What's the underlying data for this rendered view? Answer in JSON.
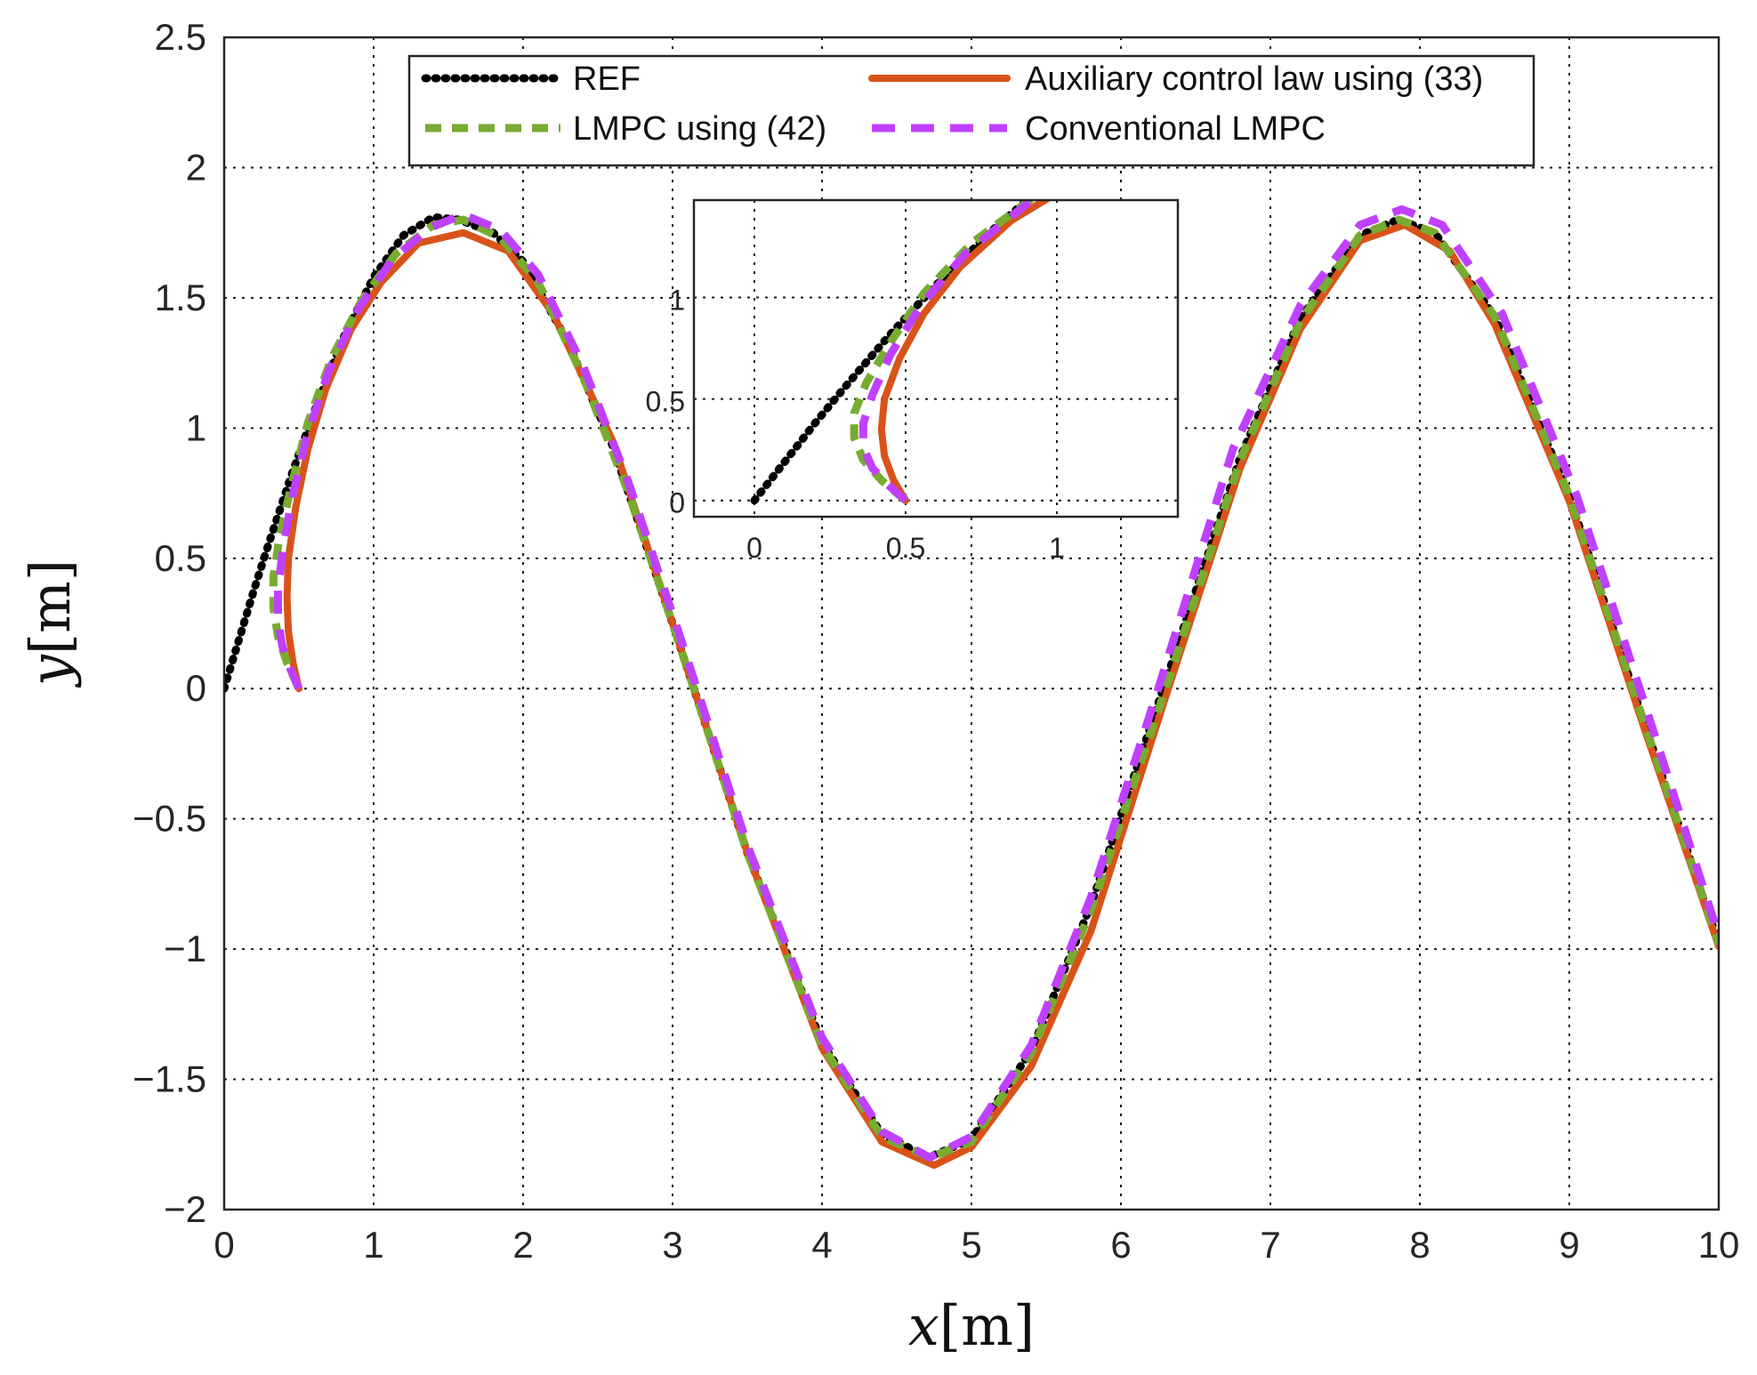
{
  "chart_data": {
    "type": "line",
    "xlabel_var": "x",
    "xlabel_unit": "[m]",
    "ylabel_var": "y",
    "ylabel_unit": "[m]",
    "xlim": [
      0,
      10
    ],
    "ylim": [
      -2,
      2.5
    ],
    "xticks": [
      "0",
      "1",
      "2",
      "3",
      "4",
      "5",
      "6",
      "7",
      "8",
      "9",
      "10"
    ],
    "yticks": [
      "2.5",
      "2",
      "1.5",
      "1",
      "0.5",
      "0",
      "−0.5",
      "−1",
      "−1.5",
      "−2"
    ],
    "grid": true,
    "legend_position": "top",
    "series": [
      {
        "name": "REF",
        "color": "#000000",
        "style": "dotted",
        "points": [
          [
            0,
            0
          ],
          [
            0.1,
            0.19
          ],
          [
            0.2,
            0.38
          ],
          [
            0.3,
            0.56
          ],
          [
            0.45,
            0.82
          ],
          [
            0.6,
            1.06
          ],
          [
            0.8,
            1.35
          ],
          [
            1.0,
            1.58
          ],
          [
            1.2,
            1.74
          ],
          [
            1.4,
            1.81
          ],
          [
            1.571,
            1.8
          ],
          [
            1.8,
            1.75
          ],
          [
            2.0,
            1.64
          ],
          [
            2.3,
            1.33
          ],
          [
            2.6,
            0.93
          ],
          [
            3.0,
            0.25
          ],
          [
            3.5,
            -0.63
          ],
          [
            4.0,
            -1.36
          ],
          [
            4.4,
            -1.71
          ],
          [
            4.712,
            -1.8
          ],
          [
            5.0,
            -1.73
          ],
          [
            5.4,
            -1.39
          ],
          [
            5.8,
            -0.83
          ],
          [
            6.283,
            0.0
          ],
          [
            6.8,
            0.89
          ],
          [
            7.2,
            1.42
          ],
          [
            7.6,
            1.74
          ],
          [
            7.854,
            1.8
          ],
          [
            8.1,
            1.75
          ],
          [
            8.5,
            1.43
          ],
          [
            9.0,
            0.74
          ],
          [
            9.5,
            -0.13
          ],
          [
            10.0,
            -0.98
          ]
        ]
      },
      {
        "name": "Auxiliary control law using (33)",
        "color": "#d95319",
        "style": "solid",
        "points": [
          [
            0.5,
            0
          ],
          [
            0.46,
            0.1
          ],
          [
            0.43,
            0.22
          ],
          [
            0.42,
            0.35
          ],
          [
            0.43,
            0.5
          ],
          [
            0.48,
            0.7
          ],
          [
            0.56,
            0.92
          ],
          [
            0.68,
            1.15
          ],
          [
            0.85,
            1.38
          ],
          [
            1.05,
            1.56
          ],
          [
            1.3,
            1.71
          ],
          [
            1.6,
            1.75
          ],
          [
            1.9,
            1.68
          ],
          [
            2.2,
            1.44
          ],
          [
            2.6,
            0.95
          ],
          [
            3.0,
            0.25
          ],
          [
            3.5,
            -0.63
          ],
          [
            4.0,
            -1.38
          ],
          [
            4.4,
            -1.74
          ],
          [
            4.75,
            -1.83
          ],
          [
            5.0,
            -1.76
          ],
          [
            5.4,
            -1.45
          ],
          [
            5.8,
            -0.93
          ],
          [
            6.3,
            -0.03
          ],
          [
            6.8,
            0.85
          ],
          [
            7.2,
            1.38
          ],
          [
            7.6,
            1.72
          ],
          [
            7.9,
            1.78
          ],
          [
            8.2,
            1.68
          ],
          [
            8.5,
            1.4
          ],
          [
            9.0,
            0.72
          ],
          [
            9.5,
            -0.15
          ],
          [
            10.0,
            -0.99
          ]
        ]
      },
      {
        "name": "LMPC using (42)",
        "color": "#77ac30",
        "style": "dashed",
        "points": [
          [
            0.5,
            0
          ],
          [
            0.42,
            0.1
          ],
          [
            0.36,
            0.2
          ],
          [
            0.33,
            0.31
          ],
          [
            0.33,
            0.43
          ],
          [
            0.37,
            0.58
          ],
          [
            0.45,
            0.78
          ],
          [
            0.56,
            1.02
          ],
          [
            0.72,
            1.27
          ],
          [
            0.92,
            1.49
          ],
          [
            1.15,
            1.67
          ],
          [
            1.4,
            1.78
          ],
          [
            1.6,
            1.8
          ],
          [
            1.85,
            1.73
          ],
          [
            2.1,
            1.56
          ],
          [
            2.4,
            1.2
          ],
          [
            2.7,
            0.76
          ],
          [
            3.0,
            0.25
          ],
          [
            3.5,
            -0.63
          ],
          [
            4.0,
            -1.37
          ],
          [
            4.4,
            -1.72
          ],
          [
            4.72,
            -1.8
          ],
          [
            5.0,
            -1.74
          ],
          [
            5.4,
            -1.4
          ],
          [
            5.8,
            -0.85
          ],
          [
            6.3,
            0.0
          ],
          [
            6.8,
            0.88
          ],
          [
            7.2,
            1.41
          ],
          [
            7.6,
            1.74
          ],
          [
            7.86,
            1.8
          ],
          [
            8.1,
            1.75
          ],
          [
            8.5,
            1.43
          ],
          [
            9.0,
            0.74
          ],
          [
            9.5,
            -0.13
          ],
          [
            10.0,
            -0.98
          ]
        ]
      },
      {
        "name": "Conventional LMPC",
        "color": "#bf40ff",
        "style": "dashed",
        "points": [
          [
            0.5,
            0
          ],
          [
            0.44,
            0.08
          ],
          [
            0.39,
            0.16
          ],
          [
            0.36,
            0.26
          ],
          [
            0.36,
            0.38
          ],
          [
            0.39,
            0.52
          ],
          [
            0.45,
            0.72
          ],
          [
            0.55,
            0.96
          ],
          [
            0.7,
            1.22
          ],
          [
            0.9,
            1.46
          ],
          [
            1.13,
            1.65
          ],
          [
            1.38,
            1.77
          ],
          [
            1.6,
            1.82
          ],
          [
            1.85,
            1.76
          ],
          [
            2.1,
            1.59
          ],
          [
            2.4,
            1.24
          ],
          [
            2.7,
            0.8
          ],
          [
            3.05,
            0.2
          ],
          [
            3.5,
            -0.6
          ],
          [
            4.0,
            -1.34
          ],
          [
            4.4,
            -1.7
          ],
          [
            4.72,
            -1.8
          ],
          [
            5.0,
            -1.72
          ],
          [
            5.4,
            -1.37
          ],
          [
            5.8,
            -0.8
          ],
          [
            6.25,
            0.0
          ],
          [
            6.75,
            0.92
          ],
          [
            7.2,
            1.47
          ],
          [
            7.6,
            1.78
          ],
          [
            7.88,
            1.84
          ],
          [
            8.15,
            1.78
          ],
          [
            8.55,
            1.44
          ],
          [
            9.05,
            0.74
          ],
          [
            9.55,
            -0.14
          ],
          [
            10.0,
            -0.95
          ]
        ]
      }
    ],
    "inset": {
      "xlim": [
        -0.2,
        1.4
      ],
      "ylim": [
        -0.08,
        1.48
      ],
      "xticks": [
        "0",
        "0.5",
        "1"
      ],
      "yticks": [
        "1",
        "0.5",
        "0"
      ],
      "series": [
        {
          "name": "REF",
          "color": "#000000",
          "style": "dotted",
          "points": [
            [
              0,
              0
            ],
            [
              0.1,
              0.19
            ],
            [
              0.2,
              0.38
            ],
            [
              0.3,
              0.56
            ],
            [
              0.45,
              0.82
            ],
            [
              0.6,
              1.06
            ],
            [
              0.8,
              1.35
            ],
            [
              0.95,
              1.54
            ]
          ]
        },
        {
          "name": "Auxiliary control law using (33)",
          "color": "#d95319",
          "style": "solid",
          "points": [
            [
              0.5,
              0
            ],
            [
              0.46,
              0.1
            ],
            [
              0.43,
              0.22
            ],
            [
              0.42,
              0.35
            ],
            [
              0.43,
              0.5
            ],
            [
              0.48,
              0.7
            ],
            [
              0.56,
              0.92
            ],
            [
              0.68,
              1.15
            ],
            [
              0.85,
              1.38
            ],
            [
              1.05,
              1.56
            ]
          ]
        },
        {
          "name": "LMPC using (42)",
          "color": "#77ac30",
          "style": "dashed",
          "points": [
            [
              0.5,
              0
            ],
            [
              0.42,
              0.1
            ],
            [
              0.36,
              0.2
            ],
            [
              0.33,
              0.31
            ],
            [
              0.33,
              0.43
            ],
            [
              0.37,
              0.58
            ],
            [
              0.45,
              0.78
            ],
            [
              0.56,
              1.02
            ],
            [
              0.72,
              1.27
            ],
            [
              0.92,
              1.49
            ],
            [
              1.0,
              1.56
            ]
          ]
        },
        {
          "name": "Conventional LMPC",
          "color": "#bf40ff",
          "style": "dashed",
          "points": [
            [
              0.5,
              0
            ],
            [
              0.44,
              0.08
            ],
            [
              0.39,
              0.16
            ],
            [
              0.36,
              0.26
            ],
            [
              0.36,
              0.38
            ],
            [
              0.39,
              0.52
            ],
            [
              0.45,
              0.72
            ],
            [
              0.55,
              0.96
            ],
            [
              0.7,
              1.22
            ],
            [
              0.9,
              1.46
            ],
            [
              0.98,
              1.56
            ]
          ]
        }
      ]
    }
  }
}
